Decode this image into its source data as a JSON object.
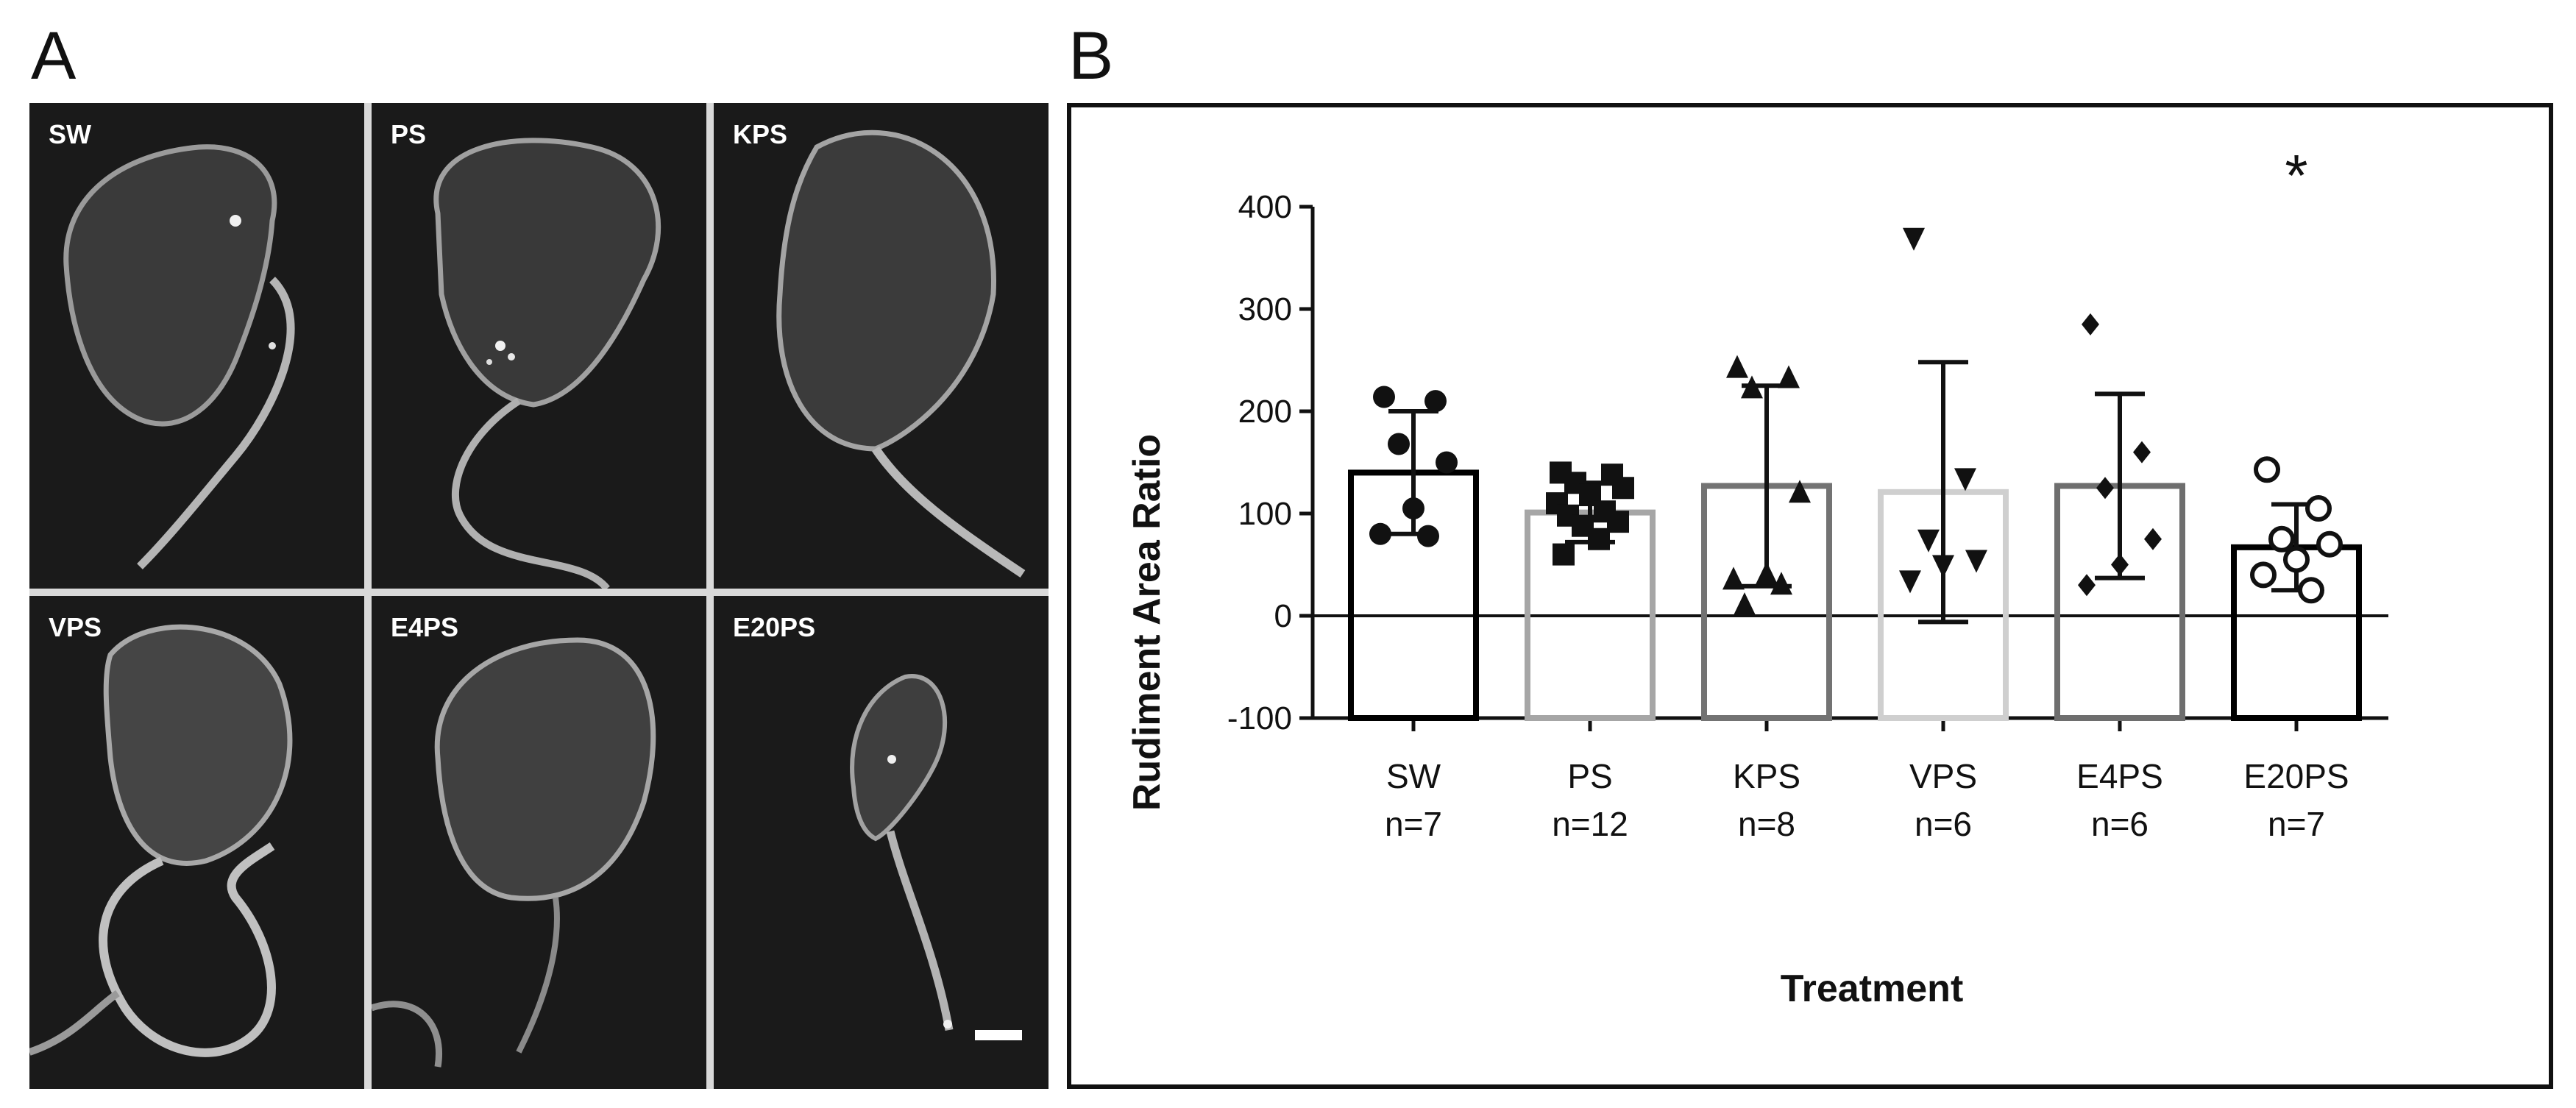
{
  "panels": {
    "a_letter": "A",
    "b_letter": "B"
  },
  "micrographs": [
    {
      "label": "SW"
    },
    {
      "label": "PS"
    },
    {
      "label": "KPS"
    },
    {
      "label": "VPS"
    },
    {
      "label": "E4PS"
    },
    {
      "label": "E20PS"
    }
  ],
  "chart_data": {
    "type": "bar",
    "xlabel": "Treatment",
    "ylabel": "Rudiment Area Ratio",
    "ylim": [
      -100,
      400
    ],
    "yticks": [
      -100,
      0,
      100,
      200,
      300,
      400
    ],
    "categories": [
      "SW",
      "PS",
      "KPS",
      "VPS",
      "E4PS",
      "E20PS"
    ],
    "n_labels": [
      "n=7",
      "n=12",
      "n=8",
      "n=6",
      "n=6",
      "n=7"
    ],
    "means": [
      140,
      101,
      127,
      121,
      127,
      67
    ],
    "sd": [
      60,
      29,
      98,
      127,
      90,
      42
    ],
    "bar_colors": [
      "#000000",
      "#a6a6a6",
      "#737373",
      "#cfcfcf",
      "#6e6e6e",
      "#000000"
    ],
    "markers": [
      "circle",
      "square",
      "triangle-up",
      "triangle-down",
      "diamond",
      "circle-open"
    ],
    "points": [
      [
        214,
        210,
        168,
        150,
        105,
        80,
        78
      ],
      [
        140,
        138,
        130,
        125,
        118,
        110,
        102,
        98,
        92,
        88,
        75,
        60
      ],
      [
        242,
        232,
        222,
        120,
        40,
        35,
        30,
        10
      ],
      [
        370,
        135,
        75,
        55,
        50,
        35
      ],
      [
        285,
        160,
        125,
        75,
        50,
        30
      ],
      [
        143,
        105,
        75,
        70,
        55,
        40,
        25
      ]
    ],
    "annotations": [
      {
        "category": "E20PS",
        "text": "*"
      }
    ]
  }
}
